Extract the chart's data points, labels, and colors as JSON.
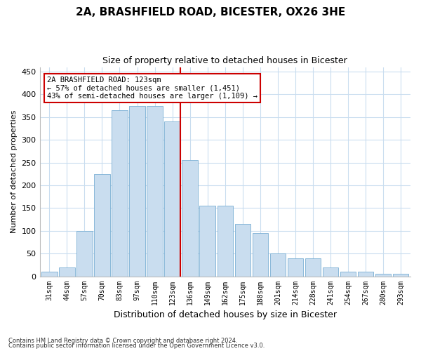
{
  "title1": "2A, BRASHFIELD ROAD, BICESTER, OX26 3HE",
  "title2": "Size of property relative to detached houses in Bicester",
  "xlabel": "Distribution of detached houses by size in Bicester",
  "ylabel": "Number of detached properties",
  "bar_labels": [
    "31sqm",
    "44sqm",
    "57sqm",
    "70sqm",
    "83sqm",
    "97sqm",
    "110sqm",
    "123sqm",
    "136sqm",
    "149sqm",
    "162sqm",
    "175sqm",
    "188sqm",
    "201sqm",
    "214sqm",
    "228sqm",
    "241sqm",
    "254sqm",
    "267sqm",
    "280sqm",
    "293sqm"
  ],
  "bar_values": [
    10,
    20,
    100,
    225,
    365,
    375,
    375,
    340,
    255,
    155,
    155,
    115,
    95,
    50,
    40,
    40,
    20,
    10,
    10,
    5,
    5
  ],
  "bar_color": "#c9ddef",
  "bar_edgecolor": "#7aafd4",
  "grid_color": "#c9ddef",
  "property_line_idx": 7,
  "property_line_label": "2A BRASHFIELD ROAD: 123sqm",
  "annotation_line1": "← 57% of detached houses are smaller (1,451)",
  "annotation_line2": "43% of semi-detached houses are larger (1,109) →",
  "annotation_box_facecolor": "#ffffff",
  "annotation_box_edgecolor": "#cc0000",
  "vline_color": "#cc0000",
  "ylim": [
    0,
    460
  ],
  "yticks": [
    0,
    50,
    100,
    150,
    200,
    250,
    300,
    350,
    400,
    450
  ],
  "footnote1": "Contains HM Land Registry data © Crown copyright and database right 2024.",
  "footnote2": "Contains public sector information licensed under the Open Government Licence v3.0.",
  "bg_color": "#ffffff",
  "plot_bg_color": "#ffffff",
  "title1_fontsize": 11,
  "title2_fontsize": 9
}
